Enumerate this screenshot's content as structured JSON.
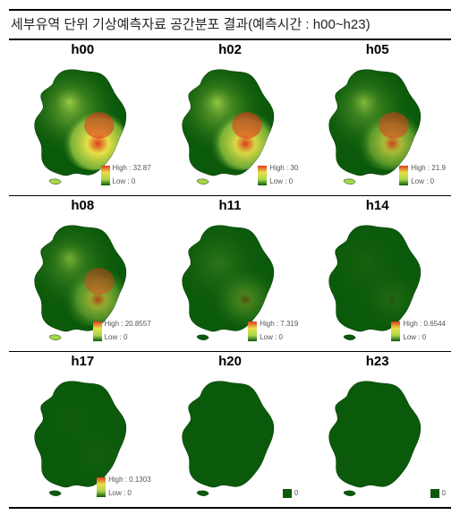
{
  "title": "세부유역 단위 기상예측자료 공간분포 결과(예측시간 : h00~h23)",
  "palette": {
    "low": "#0b5a0b",
    "mid": "#a8d64a",
    "high": "#e03a1c",
    "peak": "#e8e048"
  },
  "legend_text": {
    "high_prefix": "High : ",
    "low_prefix": "Low : "
  },
  "title_fontsize": 15,
  "label_fontsize": 15,
  "legend_fontsize": 8,
  "panels": [
    {
      "label": "h00",
      "high": 32.87,
      "low": 0,
      "intensity": 0.95,
      "legend_type": "gradient"
    },
    {
      "label": "h02",
      "high": 30,
      "low": 0,
      "intensity": 0.85,
      "legend_type": "gradient"
    },
    {
      "label": "h05",
      "high": 21.9,
      "low": 0,
      "intensity": 0.65,
      "legend_type": "gradient"
    },
    {
      "label": "h08",
      "high": 20.8557,
      "low": 0,
      "intensity": 0.55,
      "legend_type": "gradient"
    },
    {
      "label": "h11",
      "high": 7.319,
      "low": 0,
      "intensity": 0.25,
      "legend_type": "gradient"
    },
    {
      "label": "h14",
      "high": 0.6544,
      "low": 0,
      "intensity": 0.08,
      "legend_type": "gradient"
    },
    {
      "label": "h17",
      "high": 0.1303,
      "low": 0,
      "intensity": 0.03,
      "legend_type": "gradient"
    },
    {
      "label": "h20",
      "high": null,
      "low": 0,
      "intensity": 0.0,
      "legend_type": "solid"
    },
    {
      "label": "h23",
      "high": null,
      "low": 0,
      "intensity": 0.0,
      "legend_type": "solid"
    }
  ]
}
